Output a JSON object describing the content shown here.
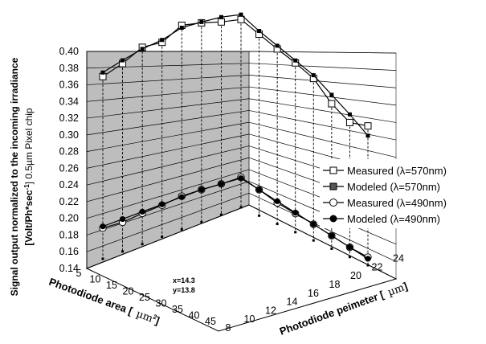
{
  "colors": {
    "wall": "#bdbdbd",
    "line": "#000000",
    "background": "#ffffff"
  },
  "chart_data": {
    "type": "line",
    "ylabel_line1": "Signal output normalized to the incoming irradiance",
    "ylabel_line2_prefix": "[Volt/Ph*sec",
    "ylabel_line2_sup": "-1",
    "ylabel_line2_suffix": "] 0.5µm Pixel chip",
    "x1label_prefix": "Photodiode area [",
    "x1label_unit": "µm",
    "x1label_sup": "2",
    "x1label_suffix": "]",
    "x2label_prefix": "Photodiode peimeter [",
    "x2label_unit": "µm",
    "x2label_suffix": "]",
    "yticks": [
      "0.40",
      "0.38",
      "0.36",
      "0.34",
      "0.32",
      "0.30",
      "0.28",
      "0.26",
      "0.24",
      "0.22",
      "0.20",
      "0.18",
      "0.16",
      "0.14"
    ],
    "ylim": [
      0.14,
      0.4
    ],
    "area_ticks": [
      "5",
      "10",
      "15",
      "20",
      "25",
      "30",
      "35",
      "40",
      "45"
    ],
    "perimeter_ticks": [
      "8",
      "10",
      "12",
      "14",
      "16",
      "18",
      "20",
      "22",
      "24"
    ],
    "annotation_x": "x=14.3",
    "annotation_y": "y=13.8",
    "legend_position": "right",
    "series": [
      {
        "name": "Measured (λ=570nm)",
        "marker": "open-square",
        "values": [
          0.365,
          0.372,
          0.383,
          0.38,
          0.392,
          0.386,
          0.378,
          0.372,
          0.364,
          0.356,
          0.349,
          0.34,
          0.319,
          0.306,
          0.312
        ]
      },
      {
        "name": "Modeled (λ=570nm)",
        "marker": "filled-square",
        "values": [
          0.37,
          0.376,
          0.381,
          0.383,
          0.389,
          0.387,
          0.384,
          0.378,
          0.368,
          0.36,
          0.352,
          0.344,
          0.33,
          0.316,
          0.3
        ]
      },
      {
        "name": "Measured (λ=490nm)",
        "marker": "open-circle",
        "values": [
          0.178,
          0.176,
          0.178,
          0.179,
          0.181,
          0.18,
          0.178,
          0.177,
          0.172,
          0.166,
          0.163,
          0.16,
          0.156,
          0.152,
          0.15
        ]
      },
      {
        "name": "Modeled (λ=490nm)",
        "marker": "filled-circle",
        "values": [
          0.18,
          0.18,
          0.18,
          0.18,
          0.18,
          0.18,
          0.178,
          0.176,
          0.172,
          0.168,
          0.164,
          0.16,
          0.156,
          0.152,
          0.148
        ]
      }
    ]
  }
}
